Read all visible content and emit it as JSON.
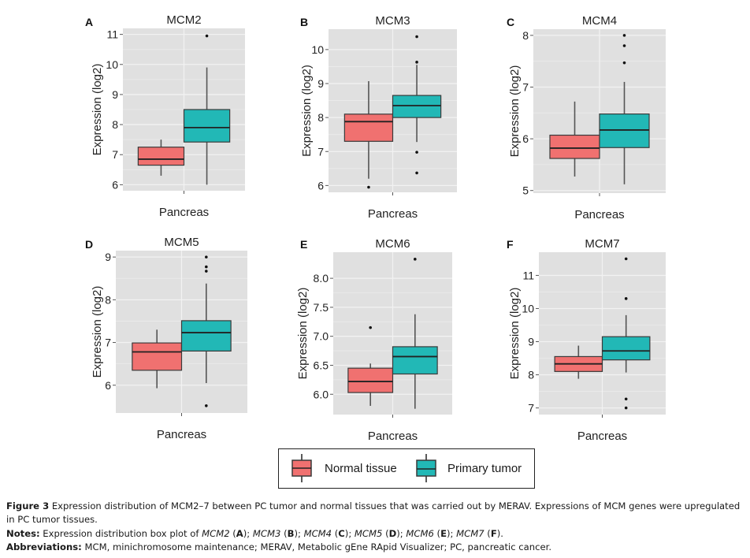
{
  "colors": {
    "normal": "#F07170",
    "tumor": "#22B8B6",
    "panel_bg": "#E0E0E0",
    "grid": "#F2F2F2",
    "box_stroke": "#3a3a3a",
    "whisker": "#555555"
  },
  "chart_data": [
    {
      "type": "box",
      "panel": "A",
      "title": "MCM2",
      "xlabel": "Pancreas",
      "ylabel": "Expression (log2)",
      "ylim": [
        5.8,
        11.2
      ],
      "yticks": [
        6,
        7,
        8,
        9,
        10,
        11
      ],
      "ytick_labels": [
        "6",
        "7",
        "8",
        "9",
        "10",
        "11"
      ],
      "series": [
        {
          "name": "Normal tissue",
          "min": 6.3,
          "q1": 6.65,
          "median": 6.85,
          "q3": 7.25,
          "max": 7.5,
          "outliers": []
        },
        {
          "name": "Primary tumor",
          "min": 6.0,
          "q1": 7.42,
          "median": 7.9,
          "q3": 8.5,
          "max": 9.9,
          "outliers": [
            10.95
          ]
        }
      ]
    },
    {
      "type": "box",
      "panel": "B",
      "title": "MCM3",
      "xlabel": "Pancreas",
      "ylabel": "Expression (log2)",
      "ylim": [
        5.8,
        10.6
      ],
      "yticks": [
        6,
        7,
        8,
        9,
        10
      ],
      "ytick_labels": [
        "6",
        "7",
        "8",
        "9",
        "10"
      ],
      "series": [
        {
          "name": "Normal tissue",
          "min": 6.2,
          "q1": 7.3,
          "median": 7.88,
          "q3": 8.1,
          "max": 9.07,
          "outliers": [
            5.95
          ]
        },
        {
          "name": "Primary tumor",
          "min": 7.28,
          "q1": 8.0,
          "median": 8.35,
          "q3": 8.65,
          "max": 9.55,
          "outliers": [
            9.63,
            10.38,
            6.98,
            6.37
          ]
        }
      ]
    },
    {
      "type": "box",
      "panel": "C",
      "title": "MCM4",
      "xlabel": "Pancreas",
      "ylabel": "Expression (log2)",
      "ylim": [
        4.95,
        8.12
      ],
      "yticks": [
        5,
        6,
        7,
        8
      ],
      "ytick_labels": [
        "5",
        "6",
        "7",
        "8"
      ],
      "series": [
        {
          "name": "Normal tissue",
          "min": 5.27,
          "q1": 5.62,
          "median": 5.82,
          "q3": 6.07,
          "max": 6.72,
          "outliers": []
        },
        {
          "name": "Primary tumor",
          "min": 5.12,
          "q1": 5.83,
          "median": 6.17,
          "q3": 6.48,
          "max": 7.1,
          "outliers": [
            7.47,
            7.8,
            8.0
          ]
        }
      ]
    },
    {
      "type": "box",
      "panel": "D",
      "title": "MCM5",
      "xlabel": "Pancreas",
      "ylabel": "Expression (log2)",
      "ylim": [
        5.35,
        9.15
      ],
      "yticks": [
        6,
        7,
        8,
        9
      ],
      "ytick_labels": [
        "6",
        "7",
        "8",
        "9"
      ],
      "series": [
        {
          "name": "Normal tissue",
          "min": 5.93,
          "q1": 6.35,
          "median": 6.78,
          "q3": 6.99,
          "max": 7.3,
          "outliers": []
        },
        {
          "name": "Primary tumor",
          "min": 6.05,
          "q1": 6.8,
          "median": 7.23,
          "q3": 7.51,
          "max": 8.38,
          "outliers": [
            5.52,
            8.67,
            8.77,
            9.0
          ]
        }
      ]
    },
    {
      "type": "box",
      "panel": "E",
      "title": "MCM6",
      "xlabel": "Pancreas",
      "ylabel": "Expression (log2)",
      "ylim": [
        5.65,
        8.45
      ],
      "yticks": [
        6.0,
        6.5,
        7.0,
        7.5,
        8.0
      ],
      "ytick_labels": [
        "6.0",
        "6.5",
        "7.0",
        "7.5",
        "8.0"
      ],
      "series": [
        {
          "name": "Normal tissue",
          "min": 5.8,
          "q1": 6.03,
          "median": 6.22,
          "q3": 6.45,
          "max": 6.53,
          "outliers": [
            7.15
          ]
        },
        {
          "name": "Primary tumor",
          "min": 5.75,
          "q1": 6.35,
          "median": 6.65,
          "q3": 6.82,
          "max": 7.38,
          "outliers": [
            8.33
          ]
        }
      ]
    },
    {
      "type": "box",
      "panel": "F",
      "title": "MCM7",
      "xlabel": "Pancreas",
      "ylabel": "Expression (log2)",
      "ylim": [
        6.8,
        11.7
      ],
      "yticks": [
        7,
        8,
        9,
        10,
        11
      ],
      "ytick_labels": [
        "7",
        "8",
        "9",
        "10",
        "11"
      ],
      "series": [
        {
          "name": "Normal tissue",
          "min": 7.88,
          "q1": 8.1,
          "median": 8.33,
          "q3": 8.55,
          "max": 8.88,
          "outliers": []
        },
        {
          "name": "Primary tumor",
          "min": 8.07,
          "q1": 8.45,
          "median": 8.72,
          "q3": 9.15,
          "max": 9.8,
          "outliers": [
            10.3,
            11.5,
            7.27,
            7.0
          ]
        }
      ]
    }
  ],
  "legend": {
    "items": [
      {
        "label": "Normal tissue",
        "color_key": "normal"
      },
      {
        "label": "Primary tumor",
        "color_key": "tumor"
      }
    ],
    "placement": "bottom-center"
  },
  "caption": {
    "figure_label": "Figure 3",
    "figure_text": " Expression distribution of MCM2–7 between PC tumor and normal tissues that was carried out by MERAV. Expressions of MCM genes were upregulated in PC tumor tissues.",
    "notes_label": "Notes:",
    "notes_prefix": " Expression distribution box plot of ",
    "notes_items": [
      {
        "gene": "MCM2",
        "panel": "A"
      },
      {
        "gene": "MCM3",
        "panel": "B"
      },
      {
        "gene": "MCM4",
        "panel": "C"
      },
      {
        "gene": "MCM5",
        "panel": "D"
      },
      {
        "gene": "MCM6",
        "panel": "E"
      },
      {
        "gene": "MCM7",
        "panel": "F"
      }
    ],
    "abbrev_label": "Abbreviations:",
    "abbrev_text": " MCM, minichromosome maintenance; MERAV, Metabolic gEne RApid Visualizer; PC, pancreatic cancer."
  }
}
